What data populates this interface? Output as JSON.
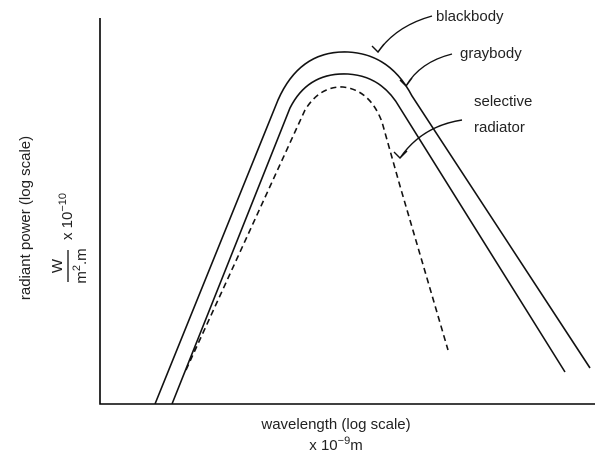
{
  "chart_data": {
    "type": "line",
    "xlabel_line1": "wavelength (log scale)",
    "xlabel_line2_prefix": "x 10",
    "xlabel_line2_exp": "−9",
    "xlabel_line2_unit": "m",
    "ylabel_main": "radiant power (log scale)",
    "ylabel_frac_num": "W",
    "ylabel_frac_den_prefix": "m",
    "ylabel_frac_den_exp": "2",
    "ylabel_frac_den_suffix": ".m",
    "ylabel_mult_prefix": "x 10",
    "ylabel_mult_exp": "−10",
    "series": [
      {
        "name": "blackbody",
        "style": "solid"
      },
      {
        "name": "graybody",
        "style": "solid"
      },
      {
        "name": "selective radiator",
        "style": "dashed",
        "label_lines": [
          "selective",
          "radiator"
        ]
      }
    ],
    "grid": false,
    "legend": "annotations with arrows"
  }
}
